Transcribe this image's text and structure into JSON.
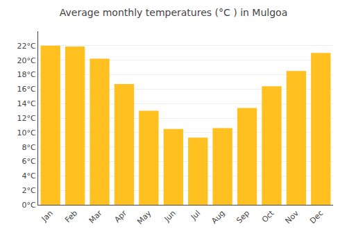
{
  "chart_data": {
    "type": "bar",
    "title": "Average monthly temperatures (°C ) in Mulgoa",
    "categories": [
      "Jan",
      "Feb",
      "Mar",
      "Apr",
      "May",
      "Jun",
      "Jul",
      "Aug",
      "Sep",
      "Oct",
      "Nov",
      "Dec"
    ],
    "values": [
      22.0,
      21.9,
      20.2,
      16.7,
      13.0,
      10.5,
      9.3,
      10.6,
      13.4,
      16.4,
      18.5,
      21.0
    ],
    "color": "#FFC020",
    "ylim": [
      0,
      24
    ],
    "yticks": [
      {
        "value": 0,
        "label": "0°C"
      },
      {
        "value": 2,
        "label": "2°C"
      },
      {
        "value": 4,
        "label": "4°C"
      },
      {
        "value": 6,
        "label": "6°C"
      },
      {
        "value": 8,
        "label": "8°C"
      },
      {
        "value": 10,
        "label": "10°C"
      },
      {
        "value": 12,
        "label": "12°C"
      },
      {
        "value": 14,
        "label": "14°C"
      },
      {
        "value": 16,
        "label": "16°C"
      },
      {
        "value": 18,
        "label": "18°C"
      },
      {
        "value": 20,
        "label": "20°C"
      },
      {
        "value": 22,
        "label": "22°C"
      }
    ],
    "grid": true
  }
}
